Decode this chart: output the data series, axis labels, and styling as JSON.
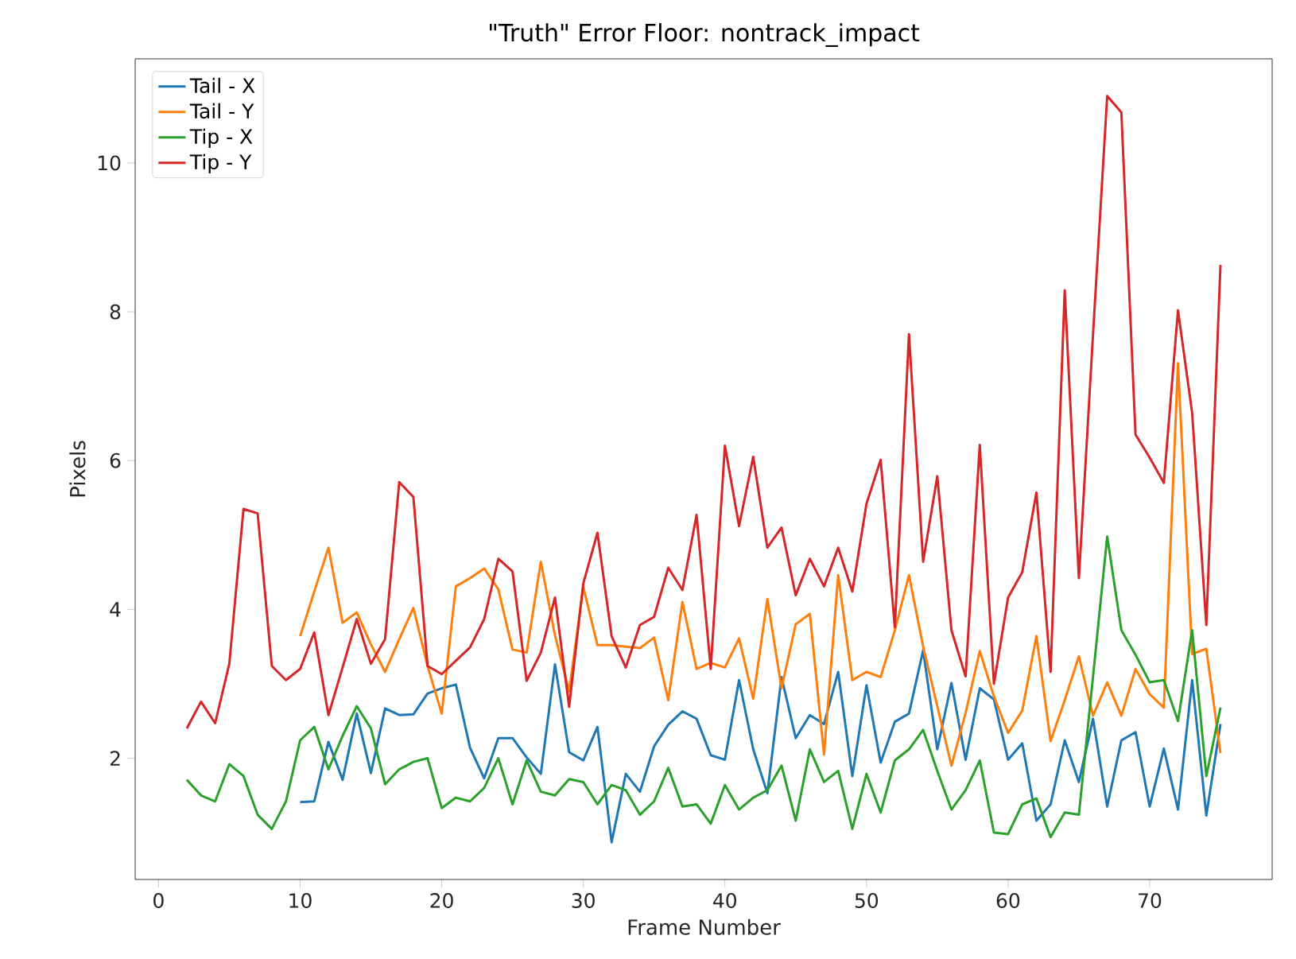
{
  "chart_data": {
    "type": "line",
    "title": "\"Truth\" Error Floor: nontrack_impact",
    "xlabel": "Frame Number",
    "ylabel": "Pixels",
    "xlim": [
      -1.65,
      78.65
    ],
    "ylim": [
      0.37,
      11.4
    ],
    "xticks": [
      0,
      10,
      20,
      30,
      40,
      50,
      60,
      70
    ],
    "yticks": [
      2,
      4,
      6,
      8,
      10
    ],
    "grid": false,
    "legend": "top left",
    "marker": "none",
    "line_style": "solid",
    "series": [
      {
        "name": "Tail - X",
        "color": "#1f77b4",
        "x": [
          10,
          11,
          12,
          13,
          14,
          15,
          16,
          17,
          18,
          19,
          20,
          21,
          22,
          23,
          24,
          25,
          26,
          27,
          28,
          29,
          30,
          31,
          32,
          33,
          34,
          35,
          36,
          37,
          38,
          39,
          40,
          41,
          42,
          43,
          44,
          45,
          46,
          47,
          48,
          49,
          50,
          51,
          52,
          53,
          54,
          55,
          56,
          57,
          58,
          59,
          60,
          61,
          62,
          63,
          64,
          65,
          66,
          67,
          68,
          69,
          70,
          71,
          72,
          73,
          74,
          75
        ],
        "values": [
          1.41,
          1.42,
          2.22,
          1.71,
          2.6,
          1.8,
          2.67,
          2.58,
          2.59,
          2.87,
          2.94,
          2.99,
          2.14,
          1.73,
          2.27,
          2.27,
          2.01,
          1.79,
          3.26,
          2.08,
          1.97,
          2.42,
          0.87,
          1.79,
          1.55,
          2.16,
          2.45,
          2.63,
          2.53,
          2.04,
          1.98,
          3.05,
          2.12,
          1.53,
          3.09,
          2.27,
          2.58,
          2.46,
          3.16,
          1.76,
          2.98,
          1.94,
          2.49,
          2.6,
          3.45,
          2.12,
          3.01,
          1.98,
          2.94,
          2.79,
          1.98,
          2.2,
          1.16,
          1.38,
          2.24,
          1.68,
          2.53,
          1.35,
          2.24,
          2.35,
          1.35,
          2.13,
          1.31,
          3.05,
          1.23,
          2.46
        ]
      },
      {
        "name": "Tail - Y",
        "color": "#ff7f0e",
        "x": [
          10,
          11,
          12,
          13,
          14,
          15,
          16,
          17,
          18,
          19,
          20,
          21,
          22,
          23,
          24,
          25,
          26,
          27,
          28,
          29,
          30,
          31,
          32,
          33,
          34,
          35,
          36,
          37,
          38,
          39,
          40,
          41,
          42,
          43,
          44,
          45,
          46,
          47,
          48,
          49,
          50,
          51,
          52,
          53,
          54,
          55,
          56,
          57,
          58,
          59,
          60,
          61,
          62,
          63,
          64,
          65,
          66,
          67,
          68,
          69,
          70,
          71,
          72,
          73,
          74,
          75
        ],
        "values": [
          3.64,
          4.24,
          4.83,
          3.82,
          3.96,
          3.53,
          3.16,
          3.6,
          4.02,
          3.24,
          2.6,
          4.31,
          4.42,
          4.55,
          4.27,
          3.46,
          3.42,
          4.64,
          3.65,
          2.9,
          4.3,
          3.52,
          3.52,
          3.5,
          3.48,
          3.62,
          2.78,
          4.1,
          3.2,
          3.28,
          3.22,
          3.61,
          2.8,
          4.14,
          2.94,
          3.8,
          3.94,
          2.05,
          4.46,
          3.05,
          3.16,
          3.09,
          3.72,
          4.46,
          3.5,
          2.7,
          1.9,
          2.61,
          3.44,
          2.83,
          2.34,
          2.64,
          3.64,
          2.23,
          2.78,
          3.37,
          2.57,
          3.02,
          2.57,
          3.2,
          2.86,
          2.68,
          7.31,
          3.4,
          3.47,
          2.07
        ]
      },
      {
        "name": "Tip - X",
        "color": "#2ca02c",
        "x": [
          2,
          3,
          4,
          5,
          6,
          7,
          8,
          9,
          10,
          11,
          12,
          13,
          14,
          15,
          16,
          17,
          18,
          19,
          20,
          21,
          22,
          23,
          24,
          25,
          26,
          27,
          28,
          29,
          30,
          31,
          32,
          33,
          34,
          35,
          36,
          37,
          38,
          39,
          40,
          41,
          42,
          43,
          44,
          45,
          46,
          47,
          48,
          49,
          50,
          51,
          52,
          53,
          54,
          55,
          56,
          57,
          58,
          59,
          60,
          61,
          62,
          63,
          64,
          65,
          66,
          67,
          68,
          69,
          70,
          71,
          72,
          73,
          74,
          75
        ],
        "values": [
          1.71,
          1.5,
          1.42,
          1.92,
          1.76,
          1.24,
          1.05,
          1.42,
          2.24,
          2.42,
          1.85,
          2.3,
          2.7,
          2.4,
          1.65,
          1.85,
          1.95,
          2.0,
          1.33,
          1.47,
          1.42,
          1.6,
          2.0,
          1.38,
          1.97,
          1.55,
          1.5,
          1.72,
          1.68,
          1.38,
          1.64,
          1.57,
          1.24,
          1.42,
          1.87,
          1.35,
          1.38,
          1.12,
          1.64,
          1.31,
          1.47,
          1.57,
          1.9,
          1.16,
          2.12,
          1.68,
          1.83,
          1.05,
          1.79,
          1.27,
          1.97,
          2.12,
          2.38,
          1.83,
          1.31,
          1.57,
          1.97,
          1.0,
          0.98,
          1.38,
          1.46,
          0.94,
          1.27,
          1.24,
          3.1,
          4.98,
          3.72,
          3.39,
          3.02,
          3.05,
          2.5,
          3.72,
          1.76,
          2.68
        ]
      },
      {
        "name": "Tip - Y",
        "color": "#d62728",
        "x": [
          2,
          3,
          4,
          5,
          6,
          7,
          8,
          9,
          10,
          11,
          12,
          13,
          14,
          15,
          16,
          17,
          18,
          19,
          20,
          21,
          22,
          23,
          24,
          25,
          26,
          27,
          28,
          29,
          30,
          31,
          32,
          33,
          34,
          35,
          36,
          37,
          38,
          39,
          40,
          41,
          42,
          43,
          44,
          45,
          46,
          47,
          48,
          49,
          50,
          51,
          52,
          53,
          54,
          55,
          56,
          57,
          58,
          59,
          60,
          61,
          62,
          63,
          64,
          65,
          66,
          67,
          68,
          69,
          70,
          71,
          72,
          73,
          74,
          75
        ],
        "values": [
          2.4,
          2.76,
          2.47,
          3.27,
          5.35,
          5.29,
          3.24,
          3.05,
          3.2,
          3.69,
          2.58,
          3.22,
          3.87,
          3.27,
          3.6,
          5.71,
          5.51,
          3.24,
          3.13,
          3.31,
          3.49,
          3.87,
          4.68,
          4.51,
          3.04,
          3.42,
          4.16,
          2.69,
          4.35,
          5.03,
          3.64,
          3.22,
          3.79,
          3.9,
          4.56,
          4.26,
          5.27,
          3.2,
          6.2,
          5.12,
          6.05,
          4.83,
          5.1,
          4.19,
          4.68,
          4.31,
          4.83,
          4.24,
          5.42,
          6.01,
          3.76,
          7.7,
          4.64,
          5.79,
          3.72,
          3.1,
          6.21,
          3.0,
          4.16,
          4.5,
          5.57,
          3.16,
          8.29,
          4.42,
          7.7,
          10.9,
          10.68,
          6.35,
          6.04,
          5.7,
          8.02,
          6.64,
          3.79,
          8.63
        ]
      }
    ]
  }
}
